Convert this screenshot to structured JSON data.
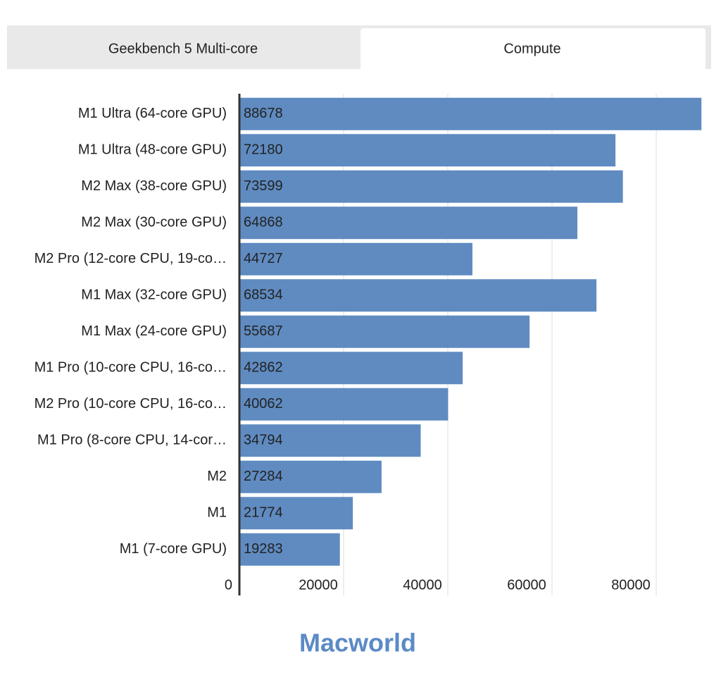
{
  "tabs": [
    "Geekbench 5 Multi-core",
    "Compute"
  ],
  "brand": "Macworld",
  "chart_data": {
    "type": "bar",
    "orientation": "horizontal",
    "categories": [
      "M1 Ultra (64-core GPU)",
      "M1 Ultra (48-core GPU)",
      "M2 Max (38-core GPU)",
      "M2 Max (30-core GPU)",
      "M2 Pro (12-core CPU, 19-co…",
      "M1 Max (32-core GPU)",
      "M1 Max (24-core GPU)",
      "M1 Pro (10-core CPU, 16-co…",
      "M2 Pro (10-core CPU, 16-co…",
      "M1 Pro (8-core CPU, 14-cor…",
      "M2",
      "M1",
      "M1 (7-core GPU)"
    ],
    "values": [
      88678,
      72180,
      73599,
      64868,
      44727,
      68534,
      55687,
      42862,
      40062,
      34794,
      27284,
      21774,
      19283
    ],
    "color": "#5f8bc1",
    "xlim": [
      0,
      90000
    ],
    "xticks": [
      0,
      20000,
      40000,
      60000,
      80000
    ],
    "grid": true
  }
}
